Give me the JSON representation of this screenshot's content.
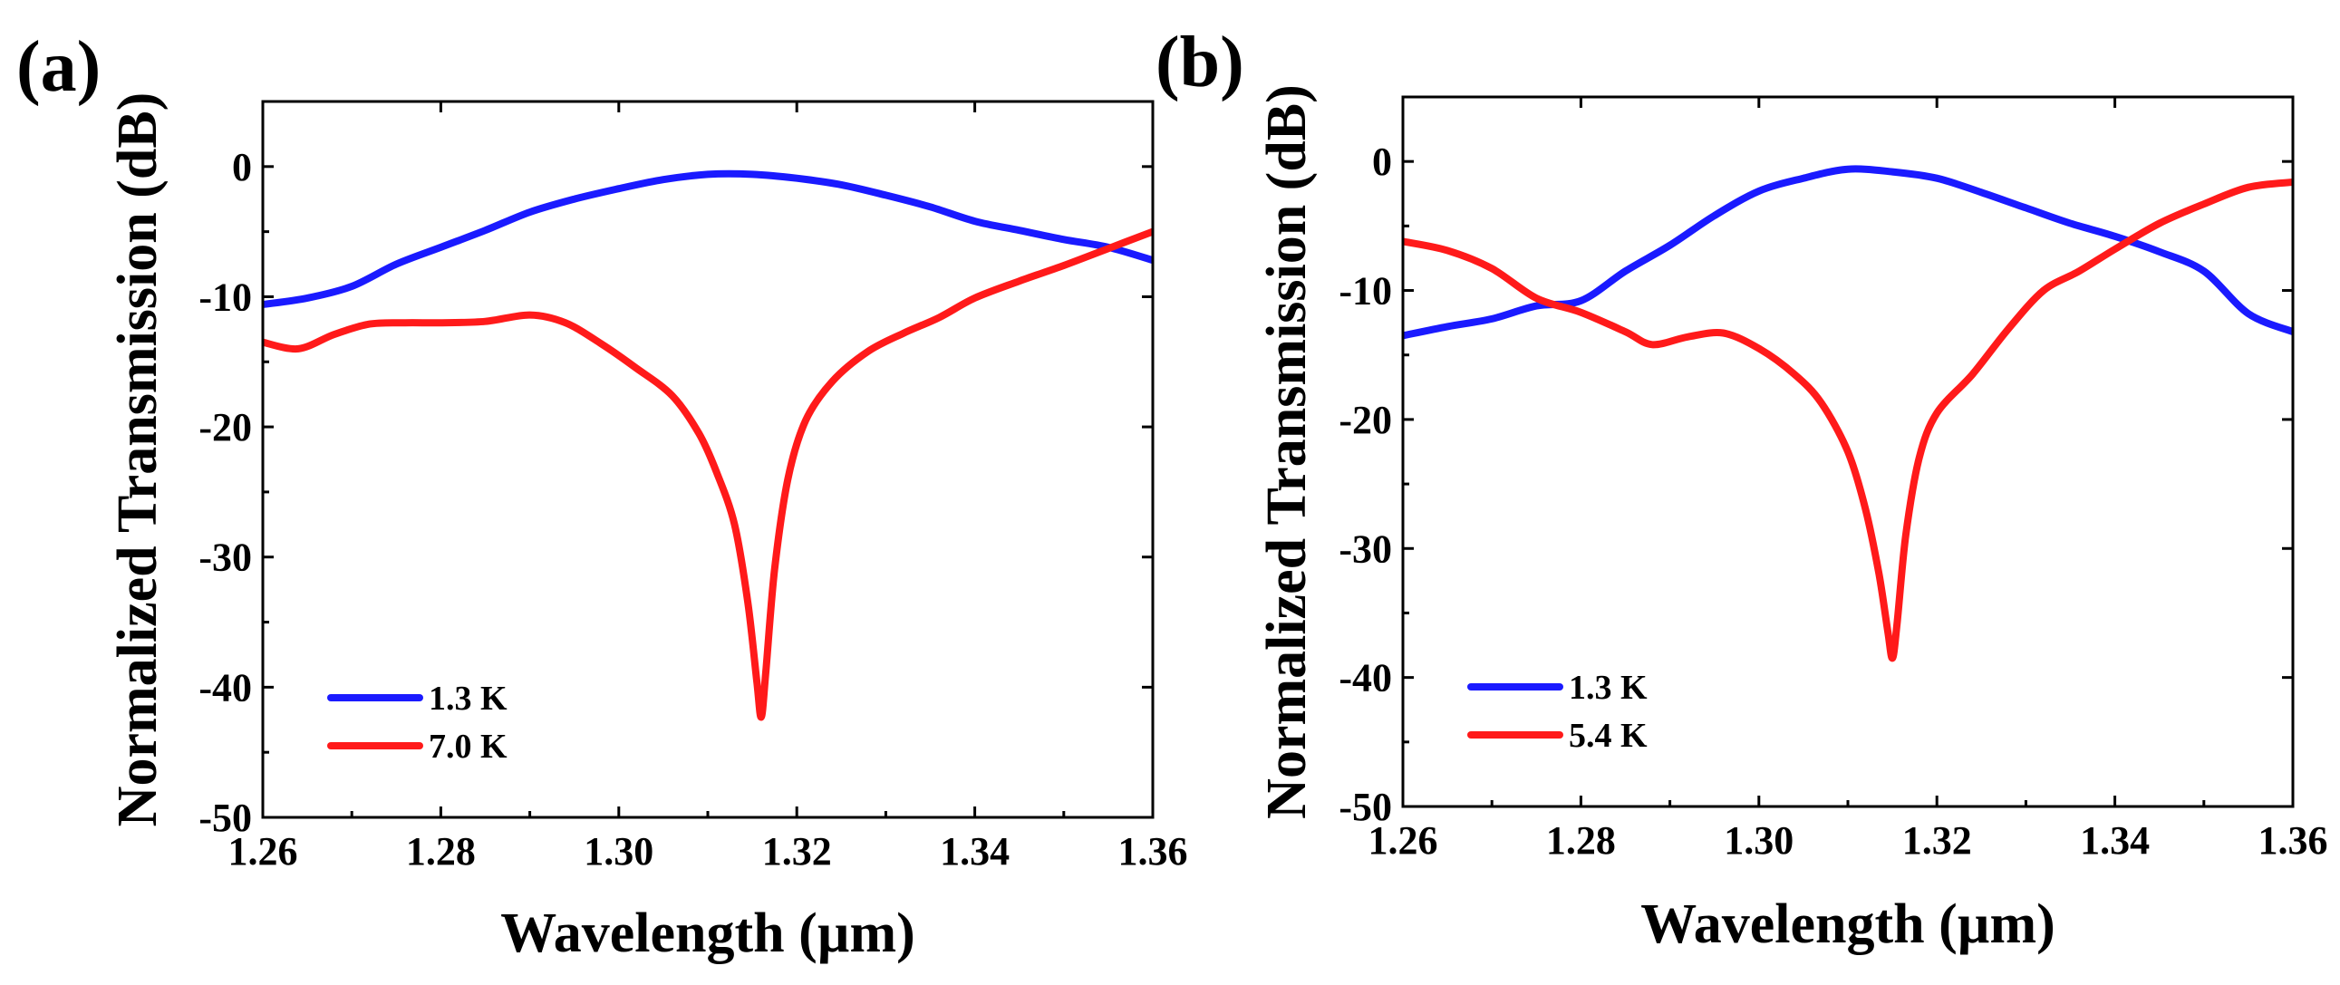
{
  "chart_data": [
    {
      "type": "line",
      "panel_label": "(a)",
      "xlabel": "Wavelength (µm)",
      "ylabel": "Normalized Transmission (dB)",
      "xlim": [
        1.26,
        1.36
      ],
      "ylim": [
        -50,
        5
      ],
      "xticks": [
        1.26,
        1.28,
        1.3,
        1.32,
        1.34,
        1.36
      ],
      "xtick_labels": [
        "1.26",
        "1.28",
        "1.30",
        "1.32",
        "1.34",
        "1.36"
      ],
      "yticks": [
        0,
        -10,
        -20,
        -30,
        -40,
        -50
      ],
      "ytick_labels": [
        "0",
        "-10",
        "-20",
        "-30",
        "-40",
        "-50"
      ],
      "legend_position": "bottom-left",
      "series": [
        {
          "name": "1.3 K",
          "color": "#1a1aff",
          "x": [
            1.26,
            1.265,
            1.27,
            1.275,
            1.28,
            1.285,
            1.29,
            1.295,
            1.3,
            1.305,
            1.31,
            1.315,
            1.32,
            1.325,
            1.33,
            1.335,
            1.34,
            1.345,
            1.35,
            1.355,
            1.36
          ],
          "y": [
            -10.6,
            -10.1,
            -9.2,
            -7.5,
            -6.2,
            -4.9,
            -3.5,
            -2.5,
            -1.7,
            -1.0,
            -0.6,
            -0.6,
            -0.9,
            -1.4,
            -2.2,
            -3.1,
            -4.2,
            -4.9,
            -5.6,
            -6.2,
            -7.2
          ]
        },
        {
          "name": "7.0 K",
          "color": "#ff1a1a",
          "x": [
            1.26,
            1.264,
            1.268,
            1.272,
            1.276,
            1.28,
            1.285,
            1.29,
            1.294,
            1.298,
            1.302,
            1.306,
            1.309,
            1.311,
            1.313,
            1.3145,
            1.3155,
            1.316,
            1.3165,
            1.3175,
            1.319,
            1.321,
            1.324,
            1.328,
            1.332,
            1.336,
            1.34,
            1.345,
            1.35,
            1.355,
            1.36
          ],
          "y": [
            -13.5,
            -14.0,
            -12.9,
            -12.1,
            -12.0,
            -12.0,
            -11.9,
            -11.4,
            -12.0,
            -13.6,
            -15.5,
            -17.6,
            -20.5,
            -23.5,
            -27.5,
            -33.5,
            -39.5,
            -42.3,
            -39.0,
            -31.0,
            -24.0,
            -19.5,
            -16.5,
            -14.2,
            -12.8,
            -11.6,
            -10.1,
            -8.8,
            -7.6,
            -6.3,
            -5.0
          ]
        }
      ]
    },
    {
      "type": "line",
      "panel_label": "(b)",
      "xlabel": "Wavelength (µm)",
      "ylabel": "Normalized Transmission (dB)",
      "xlim": [
        1.26,
        1.36
      ],
      "ylim": [
        -50,
        5
      ],
      "xticks": [
        1.26,
        1.28,
        1.3,
        1.32,
        1.34,
        1.36
      ],
      "xtick_labels": [
        "1.26",
        "1.28",
        "1.30",
        "1.32",
        "1.34",
        "1.36"
      ],
      "yticks": [
        0,
        -10,
        -20,
        -30,
        -40,
        -50
      ],
      "ytick_labels": [
        "0",
        "-10",
        "-20",
        "-30",
        "-40",
        "-50"
      ],
      "legend_position": "bottom-left",
      "series": [
        {
          "name": "1.3 K",
          "color": "#1a1aff",
          "x": [
            1.26,
            1.265,
            1.27,
            1.275,
            1.28,
            1.285,
            1.29,
            1.295,
            1.3,
            1.305,
            1.31,
            1.315,
            1.32,
            1.325,
            1.33,
            1.335,
            1.34,
            1.345,
            1.35,
            1.355,
            1.36
          ],
          "y": [
            -13.5,
            -12.8,
            -12.2,
            -11.2,
            -10.8,
            -8.5,
            -6.5,
            -4.2,
            -2.3,
            -1.3,
            -0.6,
            -0.8,
            -1.3,
            -2.4,
            -3.6,
            -4.8,
            -5.8,
            -7.0,
            -8.5,
            -11.8,
            -13.2
          ]
        },
        {
          "name": "5.4 K",
          "color": "#ff1a1a",
          "x": [
            1.26,
            1.265,
            1.27,
            1.275,
            1.28,
            1.285,
            1.288,
            1.292,
            1.296,
            1.3,
            1.304,
            1.307,
            1.31,
            1.312,
            1.3135,
            1.3145,
            1.315,
            1.3155,
            1.3165,
            1.318,
            1.32,
            1.324,
            1.328,
            1.332,
            1.336,
            1.34,
            1.345,
            1.35,
            1.355,
            1.36
          ],
          "y": [
            -6.2,
            -6.9,
            -8.3,
            -10.6,
            -11.7,
            -13.2,
            -14.2,
            -13.6,
            -13.3,
            -14.5,
            -16.5,
            -18.7,
            -22.5,
            -27.0,
            -32.0,
            -36.5,
            -38.5,
            -36.0,
            -29.0,
            -23.0,
            -19.5,
            -16.5,
            -13.0,
            -10.0,
            -8.5,
            -6.8,
            -4.8,
            -3.3,
            -2.0,
            -1.6
          ]
        }
      ]
    }
  ]
}
